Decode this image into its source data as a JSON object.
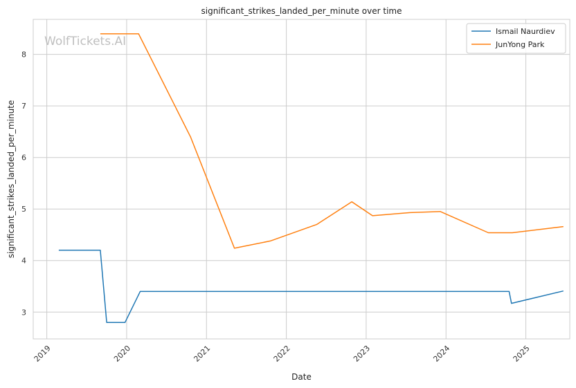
{
  "chart_data": {
    "type": "line",
    "title": "significant_strikes_landed_per_minute over time",
    "xlabel": "Date",
    "ylabel": "significant_strikes_landed_per_minute",
    "watermark": "WolfTickets.AI",
    "x_ticks": [
      "2019",
      "2020",
      "2021",
      "2022",
      "2023",
      "2024",
      "2025"
    ],
    "y_ticks": [
      "3",
      "4",
      "5",
      "6",
      "7",
      "8"
    ],
    "xlim": [
      2018.83,
      2025.55
    ],
    "ylim": [
      2.48,
      8.68
    ],
    "grid": true,
    "legend_position": "top-right",
    "series": [
      {
        "name": "Ismail Naurdiev",
        "color": "#1f77b4",
        "points": [
          [
            2019.15,
            4.2
          ],
          [
            2019.67,
            4.2
          ],
          [
            2019.75,
            2.8
          ],
          [
            2019.98,
            2.8
          ],
          [
            2020.17,
            3.4
          ],
          [
            2024.79,
            3.4
          ],
          [
            2024.82,
            3.17
          ],
          [
            2025.47,
            3.41
          ]
        ]
      },
      {
        "name": "JunYong Park",
        "color": "#ff7f0e",
        "points": [
          [
            2019.67,
            8.4
          ],
          [
            2020.15,
            8.4
          ],
          [
            2020.8,
            6.4
          ],
          [
            2021.35,
            4.24
          ],
          [
            2021.8,
            4.38
          ],
          [
            2022.38,
            4.7
          ],
          [
            2022.82,
            5.14
          ],
          [
            2023.08,
            4.87
          ],
          [
            2023.55,
            4.93
          ],
          [
            2023.93,
            4.95
          ],
          [
            2024.53,
            4.54
          ],
          [
            2024.83,
            4.54
          ],
          [
            2025.47,
            4.66
          ]
        ]
      }
    ]
  }
}
